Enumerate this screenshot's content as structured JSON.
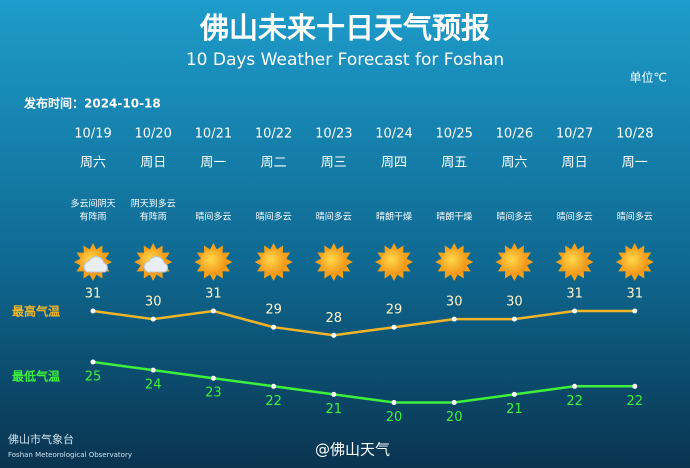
{
  "title": "佛山未来十日天气预报",
  "subtitle": "10 Days Weather Forecast for Foshan",
  "unit": "单位℃",
  "published": "发布时间：2024-10-18",
  "weekdays": [
    "周六",
    "周日",
    "周一",
    "周二",
    "周三",
    "周四",
    "周五",
    "周六",
    "周日",
    "周一"
  ],
  "conditions": [
    [
      "多云间阴天",
      "有阵雨"
    ],
    [
      "阴天到多云",
      "有阵雨"
    ],
    [
      "晴间多云"
    ],
    [
      "晴间多云"
    ],
    [
      "晴间多云"
    ],
    [
      "晴朗干燥"
    ],
    [
      "晴朗干燥"
    ],
    [
      "晴间多云"
    ],
    [
      "晴间多云"
    ],
    [
      "晴间多云"
    ]
  ],
  "footer": {
    "org": "佛山市气象台",
    "org_en": "Foshan Meteorological Observatory",
    "account": "@佛山天气"
  },
  "chart_data": {
    "type": "line",
    "categories": [
      "10/19",
      "10/20",
      "10/21",
      "10/22",
      "10/23",
      "10/24",
      "10/25",
      "10/26",
      "10/27",
      "10/28"
    ],
    "series": [
      {
        "name": "最高气温",
        "color": "#f0b428",
        "values": [
          31,
          30,
          31,
          29,
          28,
          29,
          30,
          30,
          31,
          31
        ]
      },
      {
        "name": "最低气温",
        "color": "#3cf03c",
        "values": [
          25,
          24,
          23,
          22,
          21,
          20,
          20,
          21,
          22,
          22
        ]
      }
    ]
  }
}
